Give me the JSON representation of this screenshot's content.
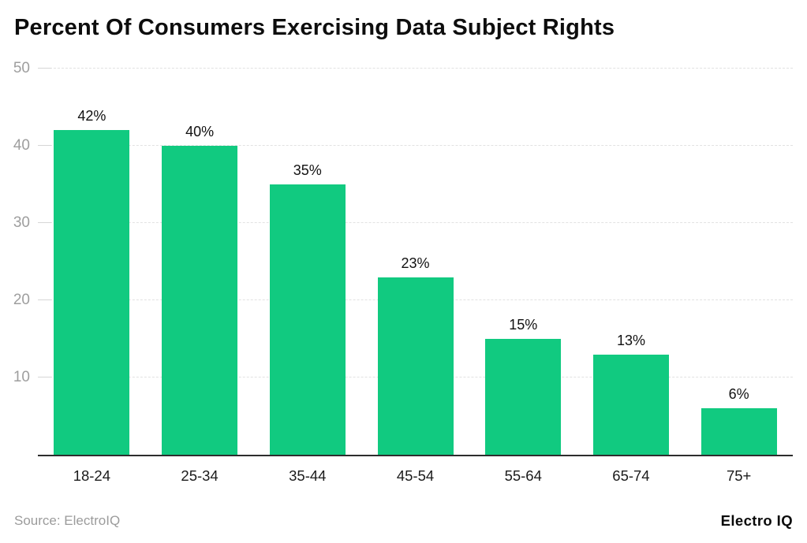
{
  "chart": {
    "title": "Percent Of Consumers Exercising Data Subject Rights"
  },
  "chart_data": {
    "type": "bar",
    "title": "Percent Of Consumers Exercising Data Subject Rights",
    "categories": [
      "18-24",
      "25-34",
      "35-44",
      "45-54",
      "55-64",
      "65-74",
      "75+"
    ],
    "values": [
      42,
      40,
      35,
      23,
      15,
      13,
      6
    ],
    "value_labels": [
      "42%",
      "40%",
      "35%",
      "23%",
      "15%",
      "13%",
      "6%"
    ],
    "xlabel": "",
    "ylabel": "",
    "ylim": [
      0,
      50
    ],
    "yticks": [
      10,
      20,
      30,
      40,
      50
    ],
    "grid": true,
    "legend": "none",
    "bar_color": "#11ca80"
  },
  "footer": {
    "source": "Source: ElectroIQ",
    "brand": "Electro IQ"
  },
  "colors": {
    "bar": "#11ca80",
    "grid": "#e2e2e2",
    "axis_line": "#2d2d2d",
    "ytick_text": "#9e9e9e",
    "xtick_text": "#1b1b1b",
    "title_text": "#0d0d0d",
    "source_text": "#9b9b9b",
    "background": "#ffffff"
  }
}
